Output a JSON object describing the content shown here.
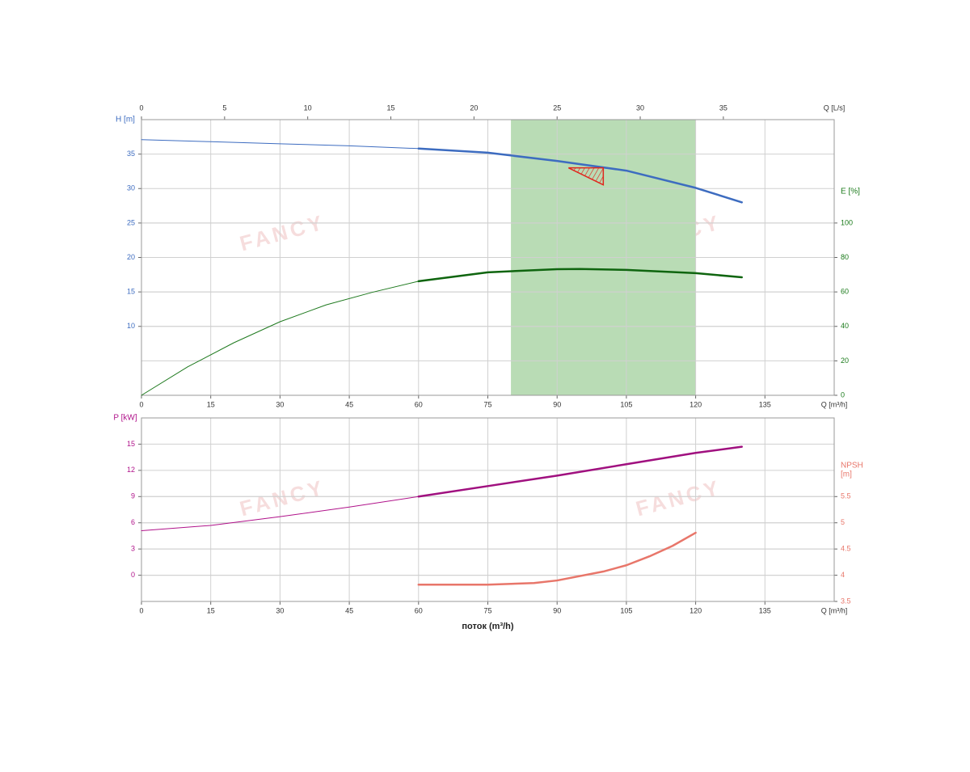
{
  "chart_data": [
    {
      "type": "line",
      "xlabel": "Q [m³/h]",
      "xlim": [
        0,
        150
      ],
      "xticks": [
        0,
        15,
        30,
        45,
        60,
        75,
        90,
        105,
        120,
        135
      ],
      "x2label": "Q [L/s]",
      "x2lim": [
        0,
        41.6667
      ],
      "x2ticks": [
        0,
        5,
        10,
        15,
        20,
        25,
        30,
        35
      ],
      "ylabel": "H [m]",
      "ylim": [
        0,
        40
      ],
      "yticks": [
        10,
        15,
        20,
        25,
        30,
        35
      ],
      "ycolor": "#3d6cc0",
      "y2label": "E [%]",
      "y2lim": [
        0,
        160
      ],
      "y2ticks": [
        0,
        20,
        40,
        60,
        80,
        100
      ],
      "y2color": "#1a7a1a",
      "grid": true,
      "band": {
        "x": [
          80,
          120
        ],
        "color": "#b9dcb5"
      },
      "duty_point": {
        "x": 100,
        "y": 33,
        "color": "#e0261d"
      },
      "series": [
        {
          "color": "#3d6cc0",
          "width": 1,
          "x": [
            0,
            15,
            30,
            45,
            60
          ],
          "values": [
            37.1,
            36.8,
            36.5,
            36.2,
            35.8
          ]
        },
        {
          "color": "#3d6cc0",
          "width": 2.5,
          "x": [
            60,
            75,
            90,
            105,
            120,
            130
          ],
          "values": [
            35.8,
            35.2,
            34.0,
            32.6,
            30.1,
            28.0
          ]
        },
        {
          "color": "#1f7a1f",
          "width": 1,
          "axis": "y2",
          "x": [
            0,
            10,
            20,
            30,
            40,
            50,
            60
          ],
          "values": [
            0,
            16.5,
            30.5,
            42.7,
            52.5,
            59.8,
            66.2
          ]
        },
        {
          "color": "#0f650f",
          "width": 2.5,
          "axis": "y2",
          "x": [
            60,
            75,
            90,
            95,
            105,
            120,
            130
          ],
          "values": [
            66.2,
            71.4,
            73.2,
            73.3,
            72.8,
            70.9,
            68.5
          ]
        }
      ]
    },
    {
      "type": "line",
      "xlabel": "Q [m³/h]",
      "xlim": [
        0,
        150
      ],
      "xticks": [
        0,
        15,
        30,
        45,
        60,
        75,
        90,
        105,
        120,
        135
      ],
      "xtitle": "поток (m³/h)",
      "ylabel": "P [kW]",
      "ylim": [
        -3,
        18
      ],
      "yticks": [
        0,
        3,
        6,
        9,
        12,
        15
      ],
      "ycolor": "#b0128a",
      "y2label": [
        "NPSH",
        "[m]"
      ],
      "y2lim": [
        3.5,
        7
      ],
      "y2ticks": [
        3.5,
        4,
        4.5,
        5,
        5.5
      ],
      "y2color": "#e8766a",
      "grid": true,
      "series": [
        {
          "color": "#b0128a",
          "width": 1,
          "x": [
            0,
            15,
            30,
            45,
            60
          ],
          "values": [
            5.1,
            5.7,
            6.7,
            7.8,
            9.0
          ]
        },
        {
          "color": "#a0107f",
          "width": 2.5,
          "x": [
            60,
            75,
            90,
            105,
            120,
            130
          ],
          "values": [
            9.0,
            10.2,
            11.4,
            12.7,
            14.0,
            14.7
          ]
        },
        {
          "color": "#e8766a",
          "width": 2.5,
          "axis": "y2",
          "x": [
            60,
            75,
            85,
            90,
            100,
            105,
            110,
            115,
            120
          ],
          "values": [
            3.82,
            3.82,
            3.85,
            3.9,
            4.07,
            4.19,
            4.36,
            4.56,
            4.81
          ]
        }
      ]
    }
  ],
  "watermark": "FANCY"
}
